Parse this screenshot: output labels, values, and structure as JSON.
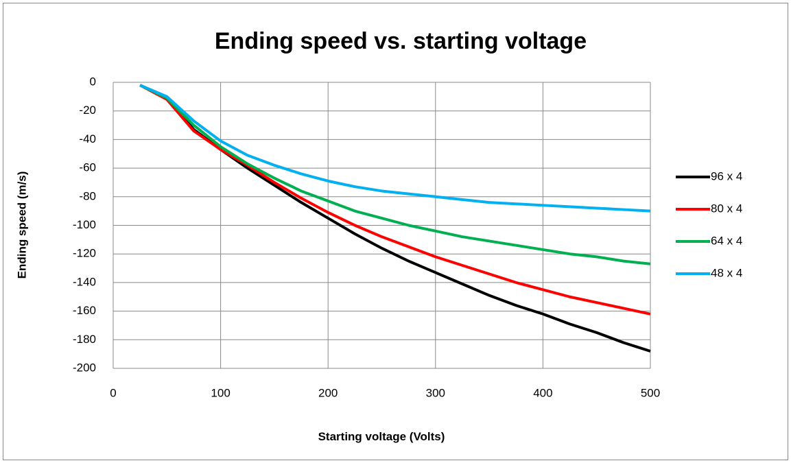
{
  "chart_data": {
    "type": "line",
    "title": "Ending speed vs. starting voltage",
    "x_label": "Starting voltage (Volts)",
    "y_label": "Ending speed (m/s)",
    "x": [
      25,
      50,
      75,
      100,
      125,
      150,
      175,
      200,
      225,
      250,
      275,
      300,
      325,
      350,
      375,
      400,
      425,
      450,
      475,
      500
    ],
    "series": [
      {
        "name": "96 x 4",
        "color": "#000000",
        "values": [
          -2,
          -11,
          -33,
          -47,
          -60,
          -72,
          -84,
          -95,
          -106,
          -116,
          -125,
          -133,
          -141,
          -149,
          -156,
          -162,
          -169,
          -175,
          -182,
          -188
        ]
      },
      {
        "name": "80 x 4",
        "color": "#ff0000",
        "values": [
          -2,
          -12,
          -34,
          -47,
          -58,
          -70,
          -81,
          -91,
          -100,
          -108,
          -115,
          -122,
          -128,
          -134,
          -140,
          -145,
          -150,
          -154,
          -158,
          -162
        ]
      },
      {
        "name": "64 x 4",
        "color": "#00b050",
        "values": [
          -2,
          -11,
          -30,
          -45,
          -57,
          -67,
          -76,
          -83,
          -90,
          -95,
          -100,
          -104,
          -108,
          -111,
          -114,
          -117,
          -120,
          -122,
          -125,
          -127
        ]
      },
      {
        "name": "48 x 4",
        "color": "#00b0f0",
        "values": [
          -2,
          -10,
          -27,
          -41,
          -51,
          -58,
          -64,
          -69,
          -73,
          -76,
          -78,
          -80,
          -82,
          -84,
          -85,
          -86,
          -87,
          -88,
          -89,
          -90
        ]
      }
    ],
    "xlim": [
      0,
      500
    ],
    "xticks": [
      0,
      100,
      200,
      300,
      400,
      500
    ],
    "ylim": [
      -200,
      0
    ],
    "yticks": [
      0,
      -20,
      -40,
      -60,
      -80,
      -100,
      -120,
      -140,
      -160,
      -180,
      -200
    ],
    "grid": true,
    "legend": "right"
  }
}
